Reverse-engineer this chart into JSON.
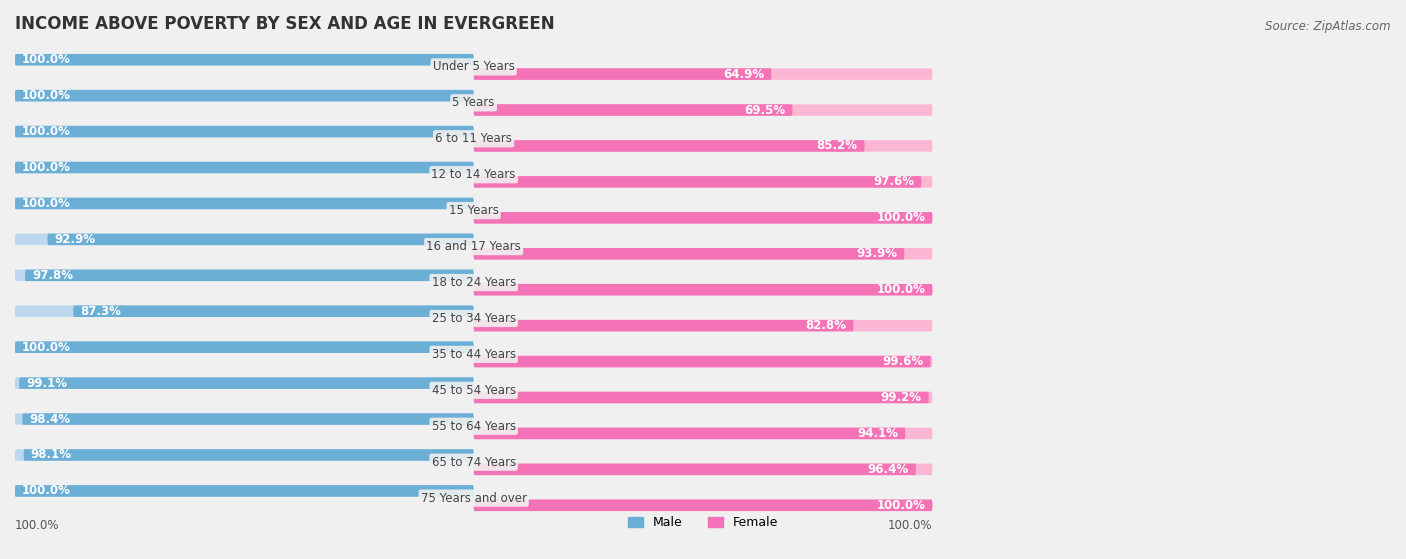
{
  "title": "INCOME ABOVE POVERTY BY SEX AND AGE IN EVERGREEN",
  "source": "Source: ZipAtlas.com",
  "categories": [
    "Under 5 Years",
    "5 Years",
    "6 to 11 Years",
    "12 to 14 Years",
    "15 Years",
    "16 and 17 Years",
    "18 to 24 Years",
    "25 to 34 Years",
    "35 to 44 Years",
    "45 to 54 Years",
    "55 to 64 Years",
    "65 to 74 Years",
    "75 Years and over"
  ],
  "male_values": [
    100.0,
    100.0,
    100.0,
    100.0,
    100.0,
    92.9,
    97.8,
    87.3,
    100.0,
    99.1,
    98.4,
    98.1,
    100.0
  ],
  "female_values": [
    64.9,
    69.5,
    85.2,
    97.6,
    100.0,
    93.9,
    100.0,
    82.8,
    99.6,
    99.2,
    94.1,
    96.4,
    100.0
  ],
  "male_color": "#6baed6",
  "male_color_light": "#bdd7ee",
  "female_color": "#f472b6",
  "female_color_light": "#fbb6d4",
  "background_color": "#f0f0f0",
  "max_value": 100.0,
  "bottom_label_male": "100.0%",
  "bottom_label_female": "100.0%"
}
